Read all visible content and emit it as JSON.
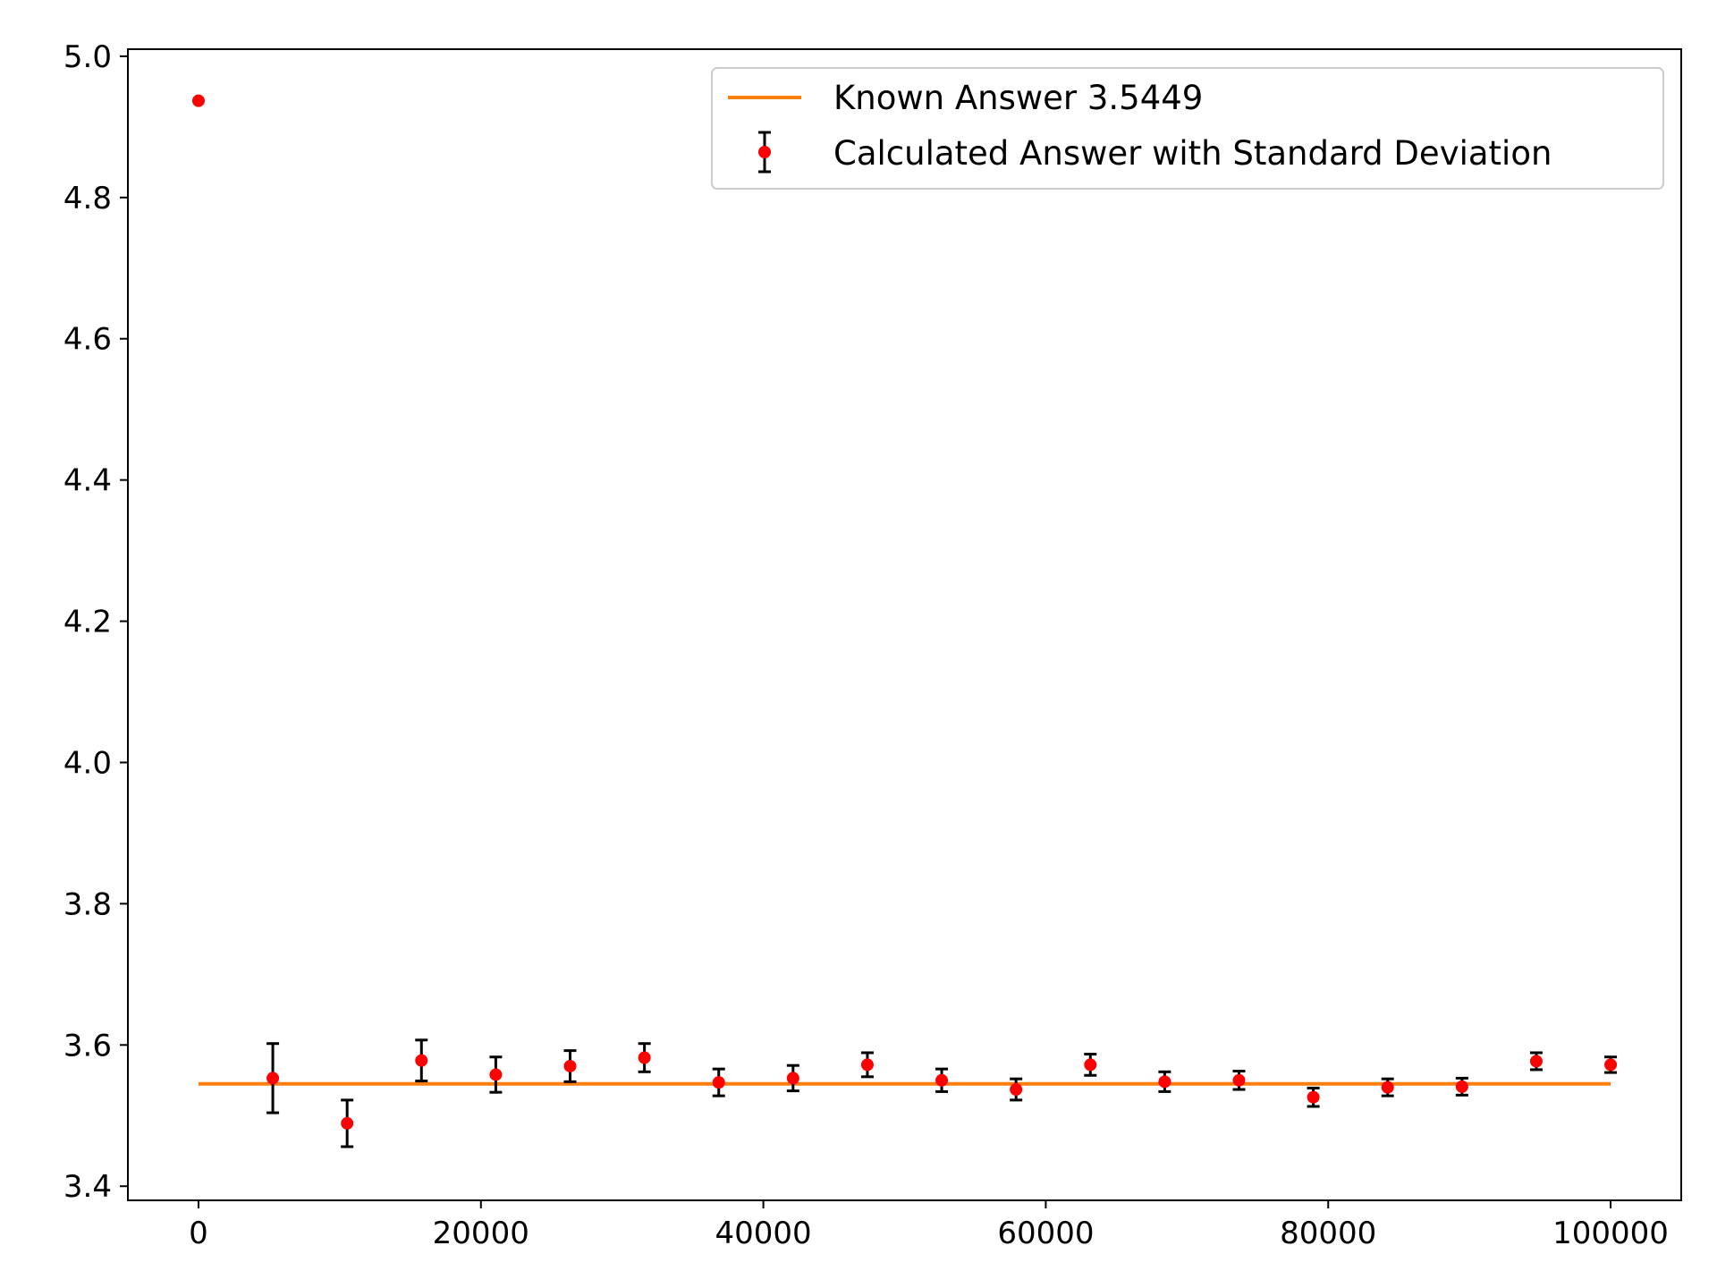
{
  "chart_data": {
    "type": "scatter",
    "title": "",
    "xlabel": "",
    "ylabel": "",
    "xlim": [
      -5000,
      105000
    ],
    "ylim": [
      3.38,
      5.01
    ],
    "x_ticks": [
      0,
      20000,
      40000,
      60000,
      80000,
      100000
    ],
    "x_tick_labels": [
      "0",
      "20000",
      "40000",
      "60000",
      "80000",
      "100000"
    ],
    "y_ticks": [
      3.4,
      3.6,
      3.8,
      4.0,
      4.2,
      4.4,
      4.6,
      4.8,
      5.0
    ],
    "y_tick_labels": [
      "3.4",
      "3.6",
      "3.8",
      "4.0",
      "4.2",
      "4.4",
      "4.6",
      "4.8",
      "5.0"
    ],
    "grid": false,
    "legend_position": "top-right",
    "series": [
      {
        "name": "Known Answer 3.5449",
        "kind": "line",
        "color": "#ff7f0e",
        "x": [
          0,
          100000
        ],
        "y": [
          3.5449,
          3.5449
        ]
      },
      {
        "name": "Calculated Answer with Standard Deviation",
        "kind": "errorbar",
        "color": "#ff0000",
        "errorbar_color": "#000000",
        "x": [
          0,
          5263,
          10526,
          15789,
          21053,
          26316,
          31579,
          36842,
          42105,
          47368,
          52632,
          57895,
          63158,
          68421,
          73684,
          78947,
          84211,
          89474,
          94737,
          100000
        ],
        "y": [
          4.937,
          3.553,
          3.489,
          3.578,
          3.558,
          3.57,
          3.582,
          3.547,
          3.553,
          3.572,
          3.55,
          3.537,
          3.572,
          3.548,
          3.55,
          3.526,
          3.54,
          3.541,
          3.577,
          3.572
        ],
        "yerr": [
          0,
          0.049,
          0.033,
          0.029,
          0.025,
          0.022,
          0.02,
          0.019,
          0.018,
          0.017,
          0.016,
          0.015,
          0.015,
          0.014,
          0.013,
          0.013,
          0.012,
          0.012,
          0.012,
          0.011
        ]
      }
    ]
  }
}
